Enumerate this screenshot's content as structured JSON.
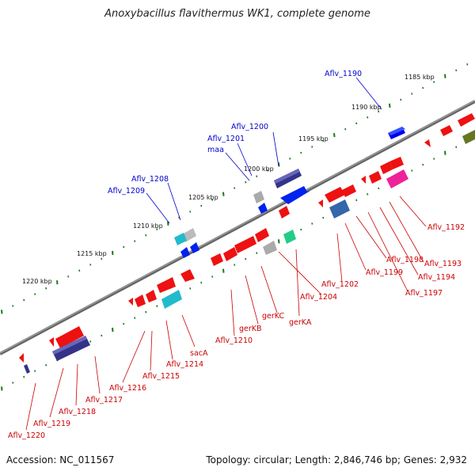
{
  "title": "Anoxybacillus flavithermus WK1, complete genome",
  "footer": {
    "accession": "Accession: NC_011567",
    "summary": "Topology: circular; Length: 2,846,746 bp; Genes: 2,932"
  },
  "scale_labels": [
    "1185 kbp",
    "1190 kbp",
    "1195 kbp",
    "1200 kbp",
    "1205 kbp",
    "1210 kbp",
    "1215 kbp",
    "1220 kbp"
  ],
  "forward_labels": [
    "Aflv_1190",
    "Aflv_1200",
    "Aflv_1201",
    "maa",
    "Aflv_1208",
    "Aflv_1209"
  ],
  "reverse_labels": [
    "Aflv_1192",
    "Aflv_1193",
    "Aflv_1194",
    "Aflv_1197",
    "Aflv_1198",
    "Aflv_1199",
    "Aflv_1202",
    "gerKA",
    "Aflv_1204",
    "gerKC",
    "gerKB",
    "Aflv_1210",
    "sacA",
    "Aflv_1214",
    "Aflv_1215",
    "Aflv_1216",
    "Aflv_1217",
    "Aflv_1218",
    "Aflv_1219",
    "Aflv_1220"
  ],
  "colors": {
    "backbone": "#808080",
    "cds": "#ff0000",
    "navy": "#333399",
    "blue": "#0000ff",
    "cyan": "#00cccc",
    "gray": "#bbbbbb",
    "green": "#00cc66",
    "steel": "#3366aa",
    "magenta": "#ff3399",
    "olive": "#667711",
    "tick": "#1a7a1a",
    "forward_label": "#0000cc",
    "reverse_label": "#cc0000"
  }
}
